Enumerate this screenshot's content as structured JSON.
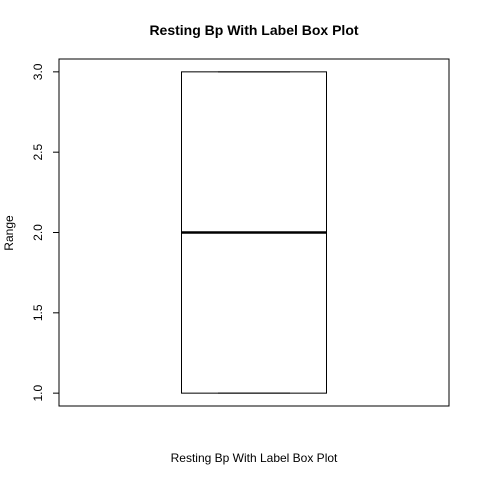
{
  "chart_data": {
    "type": "boxplot",
    "title": "Resting Bp With Label Box Plot",
    "xlabel": "Resting Bp With Label Box Plot",
    "ylabel": "Range",
    "ylim": [
      0.92,
      3.08
    ],
    "yticks": [
      1.0,
      1.5,
      2.0,
      2.5,
      3.0
    ],
    "ytick_labels": [
      "1.0",
      "1.5",
      "2.0",
      "2.5",
      "3.0"
    ],
    "grid": false,
    "legend": "none",
    "boxes": [
      {
        "min": 1.0,
        "q1": 1.0,
        "median": 2.0,
        "q3": 3.0,
        "max": 3.0
      }
    ],
    "colors": {
      "stroke": "#000000",
      "fill": "#ffffff"
    }
  }
}
